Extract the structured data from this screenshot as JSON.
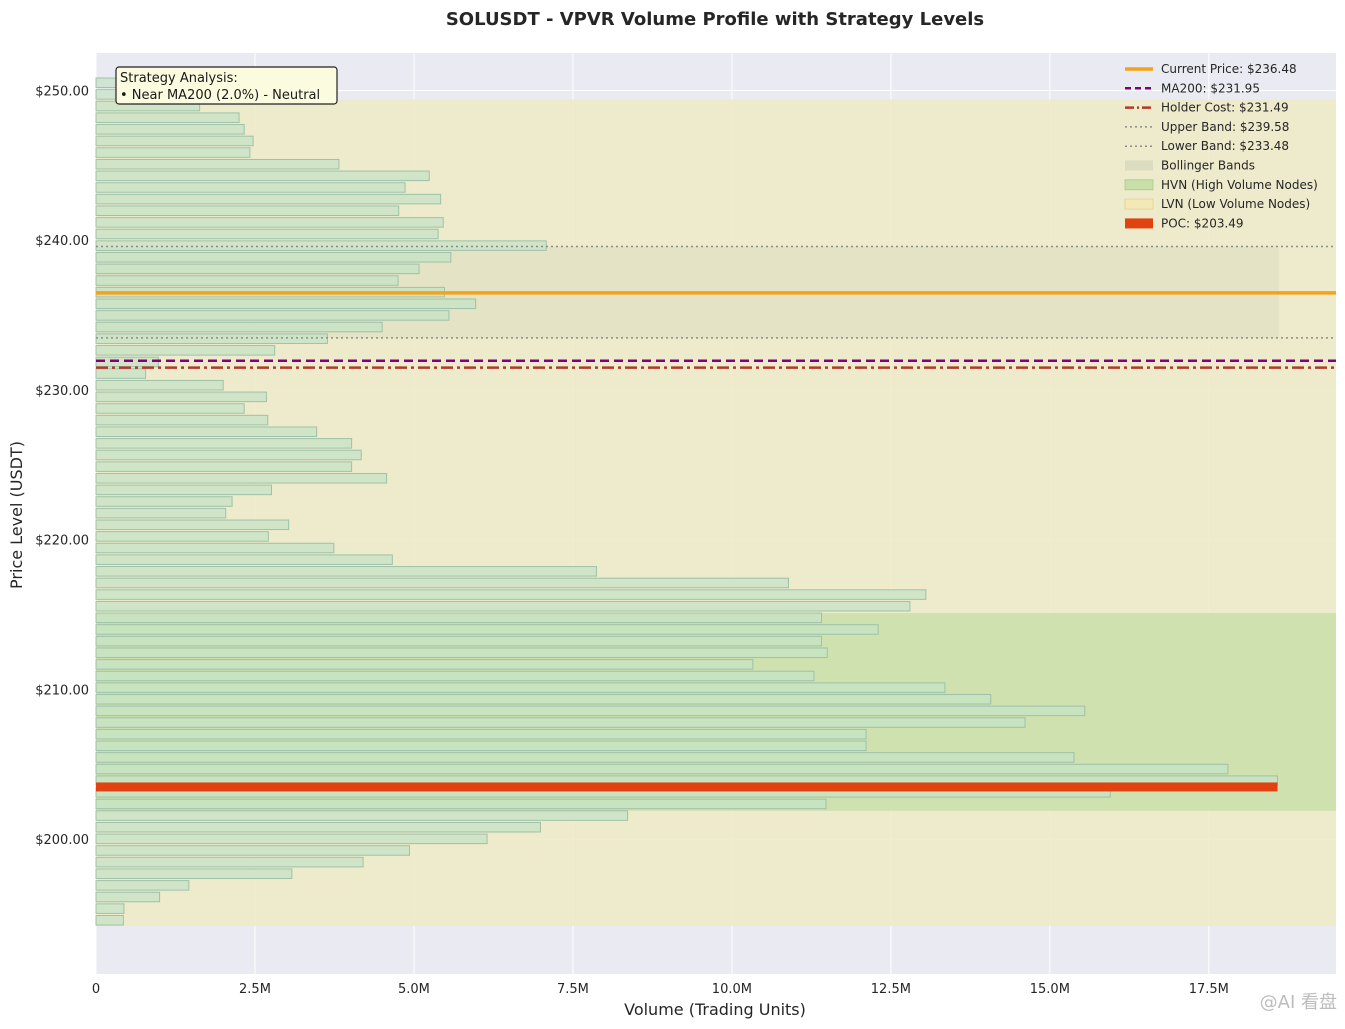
{
  "chart_data": {
    "type": "bar",
    "orientation": "horizontal",
    "title": "SOLUSDT - VPVR Volume Profile with Strategy Levels",
    "xlabel": "Volume (Trading Units)",
    "ylabel": "Price Level (USDT)",
    "xlim": [
      0,
      19500000
    ],
    "ylim": [
      191,
      252.5
    ],
    "x_ticks": [
      0,
      2500000,
      5000000,
      7500000,
      10000000,
      12500000,
      15000000,
      17500000
    ],
    "x_tick_labels": [
      "0",
      "2.5M",
      "5.0M",
      "7.5M",
      "10.0M",
      "12.5M",
      "15.0M",
      "17.5M"
    ],
    "y_ticks": [
      200,
      210,
      220,
      230,
      240,
      250
    ],
    "y_tick_labels": [
      "$200.00",
      "$210.00",
      "$220.00",
      "$230.00",
      "$240.00",
      "$250.00"
    ],
    "bins": {
      "start": 194.2,
      "step": 0.7767,
      "volumes": [
        430000,
        440000,
        1000000,
        1460000,
        3080000,
        4200000,
        4930000,
        6150000,
        6990000,
        8360000,
        11480000,
        15950000,
        18580000,
        17800000,
        15380000,
        12110000,
        12110000,
        14610000,
        15550000,
        14070000,
        13350000,
        11290000,
        10330000,
        11500000,
        11410000,
        12300000,
        11410000,
        12800000,
        13050000,
        10890000,
        7870000,
        4660000,
        3740000,
        2710000,
        3030000,
        2040000,
        2140000,
        2760000,
        4570000,
        4020000,
        4170000,
        4020000,
        3470000,
        2700000,
        2330000,
        2680000,
        2000000,
        780000,
        980000,
        2810000,
        3640000,
        4500000,
        5550000,
        5970000,
        5480000,
        4750000,
        5080000,
        5580000,
        7080000,
        5380000,
        5460000,
        4760000,
        5420000,
        4860000,
        5240000,
        3820000,
        2420000,
        2470000,
        2330000,
        2250000,
        1630000,
        870000,
        420000
      ]
    },
    "current_price": 236.48,
    "ma200": 231.95,
    "holder_cost": 231.49,
    "upper_band": 239.58,
    "lower_band": 233.48,
    "poc": 203.49,
    "hvn_zone": [
      201.9,
      215.1
    ],
    "lvn_zone": [
      194.2,
      249.4
    ],
    "colors": {
      "plot_bg": "#eaeaf2",
      "lvn_fill": "#eeeac8",
      "hvn_fill": "#c9dfa8",
      "bollinger_fill": "#dcdcc0",
      "bar_fill": "#c6e3c6",
      "bar_edge": "#9fc1a8",
      "current_price": "#f5a21b",
      "ma200": "#800080",
      "holder_cost": "#b03a2e",
      "band": "#8c8c8c",
      "poc": "#e0430f"
    },
    "legend": {
      "position": "top-right",
      "entries": [
        {
          "label": "Current Price: $236.48",
          "style": "solid"
        },
        {
          "label": "MA200: $231.95",
          "style": "dashed"
        },
        {
          "label": "Holder Cost: $231.49",
          "style": "dashdot"
        },
        {
          "label": "Upper Band: $239.58",
          "style": "dotted"
        },
        {
          "label": "Lower Band: $233.48",
          "style": "dotted"
        },
        {
          "label": "Bollinger Bands",
          "style": "patch"
        },
        {
          "label": "HVN (High Volume Nodes)",
          "style": "patch"
        },
        {
          "label": "LVN (Low Volume Nodes)",
          "style": "patch"
        },
        {
          "label": "POC: $203.49",
          "style": "patch"
        }
      ]
    },
    "annotation": {
      "lines": [
        "Strategy Analysis:",
        "• Near MA200 (2.0%) - Neutral"
      ],
      "position": "top-left"
    }
  },
  "watermark": "@AI 看盘"
}
